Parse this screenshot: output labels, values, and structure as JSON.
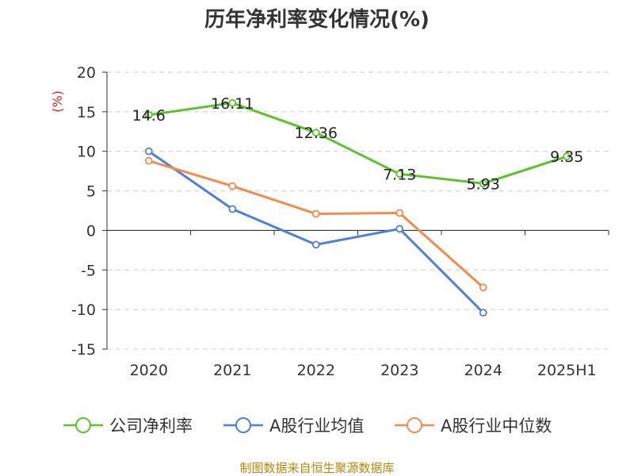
{
  "chart_data": {
    "type": "line",
    "title": "历年净利率变化情况(%)",
    "ylabel": "(%)",
    "xlabel": "",
    "categories": [
      "2020",
      "2021",
      "2022",
      "2023",
      "2024",
      "2025H1"
    ],
    "ylim": [
      -15,
      20
    ],
    "yticks": [
      20,
      15,
      10,
      5,
      0,
      -5,
      -10,
      -15
    ],
    "ytick_labels": [
      "20",
      "15",
      "10",
      "5",
      "0",
      "-5",
      "-10",
      "-15"
    ],
    "grid": true,
    "legend_position": "bottom",
    "series": [
      {
        "name": "公司净利率",
        "color": "#5ec12f",
        "values": [
          14.6,
          16.11,
          12.36,
          7.13,
          5.93,
          9.35
        ],
        "labels": [
          "14.6",
          "16.11",
          "12.36",
          "7.13",
          "5.93",
          "9.35"
        ]
      },
      {
        "name": "A股行业均值",
        "color": "#4f7fdc",
        "values": [
          10.0,
          2.7,
          -1.8,
          0.2,
          -10.4,
          null
        ]
      },
      {
        "name": "A股行业中位数",
        "color": "#f28b50",
        "values": [
          8.8,
          5.6,
          2.1,
          2.2,
          -7.2,
          null
        ]
      }
    ]
  },
  "source": "制图数据来自恒生聚源数据库"
}
